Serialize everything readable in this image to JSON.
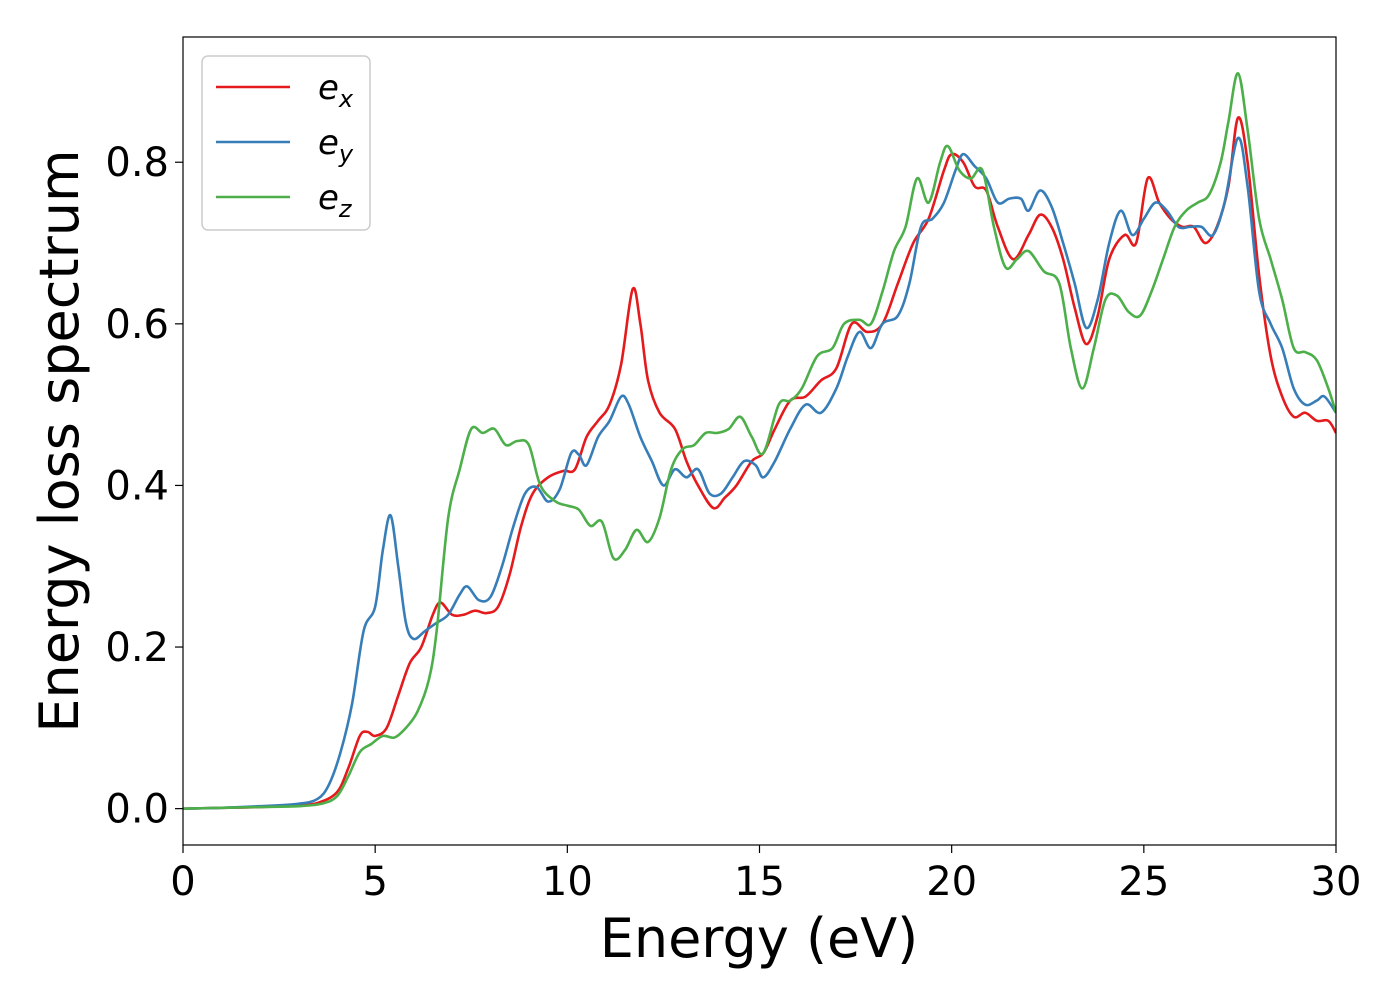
{
  "chart_data": {
    "type": "line",
    "xlabel": "Energy (eV)",
    "ylabel": "Energy loss spectrum",
    "xlim": [
      0,
      30
    ],
    "ylim": [
      -0.045,
      0.955
    ],
    "xticks": [
      0,
      5,
      10,
      15,
      20,
      25,
      30
    ],
    "xtick_labels": [
      "0",
      "5",
      "10",
      "15",
      "20",
      "25",
      "30"
    ],
    "yticks": [
      0.0,
      0.2,
      0.4,
      0.6,
      0.8
    ],
    "ytick_labels": [
      "0.0",
      "0.2",
      "0.4",
      "0.6",
      "0.8"
    ],
    "grid": false,
    "legend_position": "top-left",
    "series": [
      {
        "base": "e",
        "sub": "x",
        "color": "#e41a1c",
        "points": [
          [
            0,
            0
          ],
          [
            1,
            0.001
          ],
          [
            2,
            0.002
          ],
          [
            3,
            0.004
          ],
          [
            3.5,
            0.007
          ],
          [
            4,
            0.02
          ],
          [
            4.3,
            0.05
          ],
          [
            4.6,
            0.09
          ],
          [
            4.8,
            0.095
          ],
          [
            5.0,
            0.09
          ],
          [
            5.3,
            0.1
          ],
          [
            5.6,
            0.14
          ],
          [
            5.9,
            0.18
          ],
          [
            6.2,
            0.2
          ],
          [
            6.5,
            0.24
          ],
          [
            6.7,
            0.255
          ],
          [
            7.0,
            0.24
          ],
          [
            7.3,
            0.24
          ],
          [
            7.6,
            0.245
          ],
          [
            7.9,
            0.242
          ],
          [
            8.2,
            0.25
          ],
          [
            8.5,
            0.29
          ],
          [
            8.8,
            0.35
          ],
          [
            9.1,
            0.39
          ],
          [
            9.5,
            0.41
          ],
          [
            9.9,
            0.418
          ],
          [
            10.2,
            0.42
          ],
          [
            10.5,
            0.46
          ],
          [
            10.8,
            0.48
          ],
          [
            11.1,
            0.5
          ],
          [
            11.4,
            0.55
          ],
          [
            11.7,
            0.643
          ],
          [
            11.9,
            0.6
          ],
          [
            12.1,
            0.53
          ],
          [
            12.4,
            0.49
          ],
          [
            12.8,
            0.47
          ],
          [
            13.1,
            0.43
          ],
          [
            13.4,
            0.4
          ],
          [
            13.8,
            0.372
          ],
          [
            14.1,
            0.385
          ],
          [
            14.4,
            0.4
          ],
          [
            14.8,
            0.43
          ],
          [
            15.1,
            0.44
          ],
          [
            15.4,
            0.47
          ],
          [
            15.8,
            0.505
          ],
          [
            16.2,
            0.51
          ],
          [
            16.6,
            0.53
          ],
          [
            17.0,
            0.545
          ],
          [
            17.4,
            0.6
          ],
          [
            17.8,
            0.59
          ],
          [
            18.2,
            0.6
          ],
          [
            18.6,
            0.65
          ],
          [
            19.0,
            0.7
          ],
          [
            19.4,
            0.73
          ],
          [
            19.8,
            0.79
          ],
          [
            20.0,
            0.81
          ],
          [
            20.3,
            0.8
          ],
          [
            20.6,
            0.77
          ],
          [
            20.9,
            0.765
          ],
          [
            21.2,
            0.72
          ],
          [
            21.6,
            0.68
          ],
          [
            22.0,
            0.71
          ],
          [
            22.3,
            0.735
          ],
          [
            22.6,
            0.72
          ],
          [
            22.9,
            0.68
          ],
          [
            23.2,
            0.62
          ],
          [
            23.5,
            0.575
          ],
          [
            23.8,
            0.61
          ],
          [
            24.1,
            0.68
          ],
          [
            24.5,
            0.71
          ],
          [
            24.8,
            0.7
          ],
          [
            25.1,
            0.78
          ],
          [
            25.4,
            0.75
          ],
          [
            25.7,
            0.73
          ],
          [
            26.0,
            0.72
          ],
          [
            26.3,
            0.72
          ],
          [
            26.6,
            0.7
          ],
          [
            26.9,
            0.72
          ],
          [
            27.2,
            0.77
          ],
          [
            27.45,
            0.855
          ],
          [
            27.7,
            0.8
          ],
          [
            28.0,
            0.66
          ],
          [
            28.3,
            0.56
          ],
          [
            28.6,
            0.51
          ],
          [
            28.9,
            0.485
          ],
          [
            29.2,
            0.49
          ],
          [
            29.5,
            0.48
          ],
          [
            29.8,
            0.48
          ],
          [
            30.0,
            0.465
          ]
        ]
      },
      {
        "base": "e",
        "sub": "y",
        "color": "#377eb8",
        "points": [
          [
            0,
            0
          ],
          [
            1,
            0.001
          ],
          [
            2,
            0.003
          ],
          [
            3,
            0.006
          ],
          [
            3.5,
            0.012
          ],
          [
            3.8,
            0.03
          ],
          [
            4.1,
            0.07
          ],
          [
            4.4,
            0.13
          ],
          [
            4.7,
            0.22
          ],
          [
            5.0,
            0.25
          ],
          [
            5.2,
            0.32
          ],
          [
            5.4,
            0.363
          ],
          [
            5.6,
            0.3
          ],
          [
            5.8,
            0.23
          ],
          [
            6.0,
            0.21
          ],
          [
            6.3,
            0.22
          ],
          [
            6.6,
            0.23
          ],
          [
            6.9,
            0.24
          ],
          [
            7.2,
            0.265
          ],
          [
            7.4,
            0.275
          ],
          [
            7.7,
            0.258
          ],
          [
            8.0,
            0.262
          ],
          [
            8.3,
            0.3
          ],
          [
            8.6,
            0.35
          ],
          [
            8.9,
            0.39
          ],
          [
            9.2,
            0.398
          ],
          [
            9.5,
            0.38
          ],
          [
            9.8,
            0.395
          ],
          [
            10.1,
            0.44
          ],
          [
            10.3,
            0.438
          ],
          [
            10.5,
            0.425
          ],
          [
            10.8,
            0.46
          ],
          [
            11.1,
            0.48
          ],
          [
            11.4,
            0.51
          ],
          [
            11.6,
            0.5
          ],
          [
            11.9,
            0.46
          ],
          [
            12.2,
            0.43
          ],
          [
            12.5,
            0.4
          ],
          [
            12.8,
            0.42
          ],
          [
            13.1,
            0.41
          ],
          [
            13.4,
            0.42
          ],
          [
            13.7,
            0.39
          ],
          [
            14.0,
            0.39
          ],
          [
            14.3,
            0.41
          ],
          [
            14.6,
            0.43
          ],
          [
            14.9,
            0.425
          ],
          [
            15.1,
            0.41
          ],
          [
            15.4,
            0.43
          ],
          [
            15.8,
            0.47
          ],
          [
            16.2,
            0.5
          ],
          [
            16.6,
            0.49
          ],
          [
            17.0,
            0.52
          ],
          [
            17.3,
            0.56
          ],
          [
            17.6,
            0.59
          ],
          [
            17.9,
            0.57
          ],
          [
            18.2,
            0.6
          ],
          [
            18.6,
            0.61
          ],
          [
            18.9,
            0.65
          ],
          [
            19.2,
            0.72
          ],
          [
            19.5,
            0.73
          ],
          [
            19.8,
            0.75
          ],
          [
            20.1,
            0.79
          ],
          [
            20.3,
            0.81
          ],
          [
            20.6,
            0.795
          ],
          [
            20.9,
            0.78
          ],
          [
            21.2,
            0.75
          ],
          [
            21.5,
            0.755
          ],
          [
            21.8,
            0.755
          ],
          [
            22.0,
            0.74
          ],
          [
            22.3,
            0.765
          ],
          [
            22.6,
            0.745
          ],
          [
            22.9,
            0.7
          ],
          [
            23.2,
            0.65
          ],
          [
            23.5,
            0.595
          ],
          [
            23.8,
            0.63
          ],
          [
            24.1,
            0.7
          ],
          [
            24.4,
            0.74
          ],
          [
            24.7,
            0.71
          ],
          [
            25.0,
            0.73
          ],
          [
            25.3,
            0.75
          ],
          [
            25.6,
            0.74
          ],
          [
            25.9,
            0.72
          ],
          [
            26.2,
            0.72
          ],
          [
            26.5,
            0.72
          ],
          [
            26.8,
            0.71
          ],
          [
            27.1,
            0.75
          ],
          [
            27.45,
            0.83
          ],
          [
            27.7,
            0.77
          ],
          [
            28.0,
            0.64
          ],
          [
            28.3,
            0.6
          ],
          [
            28.6,
            0.57
          ],
          [
            28.9,
            0.52
          ],
          [
            29.2,
            0.5
          ],
          [
            29.5,
            0.505
          ],
          [
            29.7,
            0.51
          ],
          [
            30.0,
            0.49
          ]
        ]
      },
      {
        "base": "e",
        "sub": "z",
        "color": "#4daf4a",
        "points": [
          [
            0,
            0
          ],
          [
            1,
            0.001
          ],
          [
            2,
            0.002
          ],
          [
            3,
            0.003
          ],
          [
            3.6,
            0.006
          ],
          [
            4.0,
            0.015
          ],
          [
            4.3,
            0.04
          ],
          [
            4.6,
            0.07
          ],
          [
            4.9,
            0.08
          ],
          [
            5.2,
            0.09
          ],
          [
            5.5,
            0.088
          ],
          [
            5.8,
            0.1
          ],
          [
            6.1,
            0.12
          ],
          [
            6.4,
            0.16
          ],
          [
            6.6,
            0.22
          ],
          [
            6.9,
            0.36
          ],
          [
            7.2,
            0.42
          ],
          [
            7.5,
            0.47
          ],
          [
            7.8,
            0.465
          ],
          [
            8.1,
            0.47
          ],
          [
            8.4,
            0.45
          ],
          [
            8.7,
            0.455
          ],
          [
            9.0,
            0.45
          ],
          [
            9.3,
            0.4
          ],
          [
            9.7,
            0.38
          ],
          [
            10.0,
            0.375
          ],
          [
            10.3,
            0.37
          ],
          [
            10.6,
            0.35
          ],
          [
            10.9,
            0.355
          ],
          [
            11.2,
            0.31
          ],
          [
            11.5,
            0.32
          ],
          [
            11.8,
            0.345
          ],
          [
            12.1,
            0.33
          ],
          [
            12.4,
            0.36
          ],
          [
            12.7,
            0.42
          ],
          [
            13.0,
            0.445
          ],
          [
            13.3,
            0.45
          ],
          [
            13.6,
            0.465
          ],
          [
            13.9,
            0.465
          ],
          [
            14.2,
            0.47
          ],
          [
            14.5,
            0.485
          ],
          [
            14.8,
            0.46
          ],
          [
            15.1,
            0.44
          ],
          [
            15.5,
            0.5
          ],
          [
            15.8,
            0.505
          ],
          [
            16.1,
            0.52
          ],
          [
            16.5,
            0.56
          ],
          [
            16.9,
            0.57
          ],
          [
            17.2,
            0.6
          ],
          [
            17.6,
            0.605
          ],
          [
            17.9,
            0.6
          ],
          [
            18.2,
            0.64
          ],
          [
            18.5,
            0.69
          ],
          [
            18.8,
            0.72
          ],
          [
            19.1,
            0.78
          ],
          [
            19.4,
            0.75
          ],
          [
            19.7,
            0.8
          ],
          [
            19.9,
            0.82
          ],
          [
            20.2,
            0.79
          ],
          [
            20.5,
            0.78
          ],
          [
            20.8,
            0.79
          ],
          [
            21.1,
            0.72
          ],
          [
            21.4,
            0.67
          ],
          [
            21.7,
            0.68
          ],
          [
            22.0,
            0.69
          ],
          [
            22.4,
            0.665
          ],
          [
            22.8,
            0.65
          ],
          [
            23.1,
            0.57
          ],
          [
            23.4,
            0.52
          ],
          [
            23.7,
            0.57
          ],
          [
            24.0,
            0.63
          ],
          [
            24.3,
            0.635
          ],
          [
            24.6,
            0.615
          ],
          [
            24.9,
            0.61
          ],
          [
            25.2,
            0.64
          ],
          [
            25.5,
            0.68
          ],
          [
            25.8,
            0.72
          ],
          [
            26.1,
            0.74
          ],
          [
            26.4,
            0.75
          ],
          [
            26.7,
            0.76
          ],
          [
            27.0,
            0.8
          ],
          [
            27.2,
            0.85
          ],
          [
            27.45,
            0.91
          ],
          [
            27.7,
            0.84
          ],
          [
            28.0,
            0.73
          ],
          [
            28.3,
            0.68
          ],
          [
            28.6,
            0.63
          ],
          [
            28.9,
            0.57
          ],
          [
            29.2,
            0.565
          ],
          [
            29.5,
            0.555
          ],
          [
            29.8,
            0.52
          ],
          [
            30.0,
            0.49
          ]
        ]
      }
    ]
  }
}
